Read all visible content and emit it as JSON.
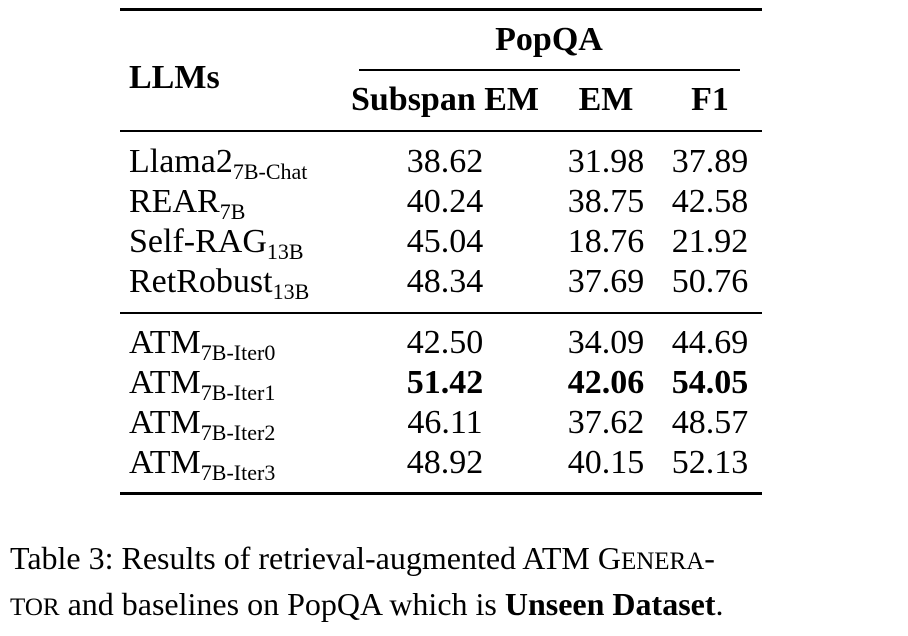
{
  "table": {
    "header": {
      "col_llms": "LLMs",
      "group": "PopQA",
      "col_subspan": "Subspan EM",
      "col_em": "EM",
      "col_f1": "F1"
    },
    "rows": [
      {
        "model": "Llama2",
        "sub": "7B-Chat",
        "subspan_em": "38.62",
        "em": "31.98",
        "f1": "37.89"
      },
      {
        "model": "REAR",
        "sub": "7B",
        "subspan_em": "40.24",
        "em": "38.75",
        "f1": "42.58"
      },
      {
        "model": "Self-RAG",
        "sub": "13B",
        "subspan_em": "45.04",
        "em": "18.76",
        "f1": "21.92"
      },
      {
        "model": "RetRobust",
        "sub": "13B",
        "subspan_em": "48.34",
        "em": "37.69",
        "f1": "50.76"
      },
      {
        "model": "ATM",
        "sub": "7B-Iter0",
        "subspan_em": "42.50",
        "em": "34.09",
        "f1": "44.69"
      },
      {
        "model": "ATM",
        "sub": "7B-Iter1",
        "subspan_em": "51.42",
        "em": "42.06",
        "f1": "54.05"
      },
      {
        "model": "ATM",
        "sub": "7B-Iter2",
        "subspan_em": "46.11",
        "em": "37.62",
        "f1": "48.57"
      },
      {
        "model": "ATM",
        "sub": "7B-Iter3",
        "subspan_em": "48.92",
        "em": "40.15",
        "f1": "52.13"
      }
    ]
  },
  "caption": {
    "line1_prefix": "Table 3: Results of retrieval-augmented ATM ",
    "sc1_big": "G",
    "sc1_small": "ENERA",
    "line1_suffix": "-",
    "sc2_small": "TOR",
    "line2_mid": " and baselines on PopQA which is ",
    "line2_bold": "Unseen Dataset",
    "line2_end": "."
  }
}
